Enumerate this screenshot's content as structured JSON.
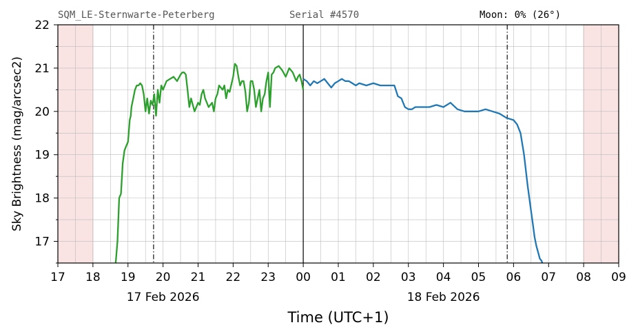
{
  "header": {
    "station": "SQM_LE-Sternwarte-Peterberg",
    "serial": "Serial #4570",
    "moon": "Moon: 0% (26°)"
  },
  "colors": {
    "evening": "#2ca02c",
    "morning": "#1f77b4",
    "daylight_shade": "#f9e3e3"
  },
  "chart_data": {
    "type": "line",
    "xlabel": "Time (UTC+1)",
    "ylabel": "Sky Brightness (mag/arcsec2)",
    "xlim": [
      17,
      33
    ],
    "ylim": [
      16.5,
      22
    ],
    "x_tick_positions": [
      17,
      18,
      19,
      20,
      21,
      22,
      23,
      24,
      25,
      26,
      27,
      28,
      29,
      30,
      31,
      32,
      33
    ],
    "x_tick_labels": [
      "17",
      "18",
      "19",
      "20",
      "21",
      "22",
      "23",
      "00",
      "01",
      "02",
      "03",
      "04",
      "05",
      "06",
      "07",
      "08",
      "09"
    ],
    "y_ticks": [
      17,
      18,
      19,
      20,
      21,
      22
    ],
    "date_labels": [
      {
        "text": "17 Feb 2026",
        "x": 20
      },
      {
        "text": "18 Feb 2026",
        "x": 28
      }
    ],
    "grid": true,
    "midnight_line": 24,
    "twilight_lines": [
      19.73,
      29.82
    ],
    "daylight_shading": [
      [
        17,
        18
      ],
      [
        32,
        33
      ]
    ],
    "series": [
      {
        "color": "#2ca02c",
        "x": [
          18.65,
          18.7,
          18.75,
          18.8,
          18.85,
          18.9,
          18.95,
          19.0,
          19.02,
          19.05,
          19.08,
          19.1,
          19.15,
          19.2,
          19.25,
          19.3,
          19.35,
          19.4,
          19.45,
          19.5,
          19.55,
          19.6,
          19.65,
          19.7,
          19.75,
          19.8,
          19.85,
          19.9,
          19.95,
          20.0,
          20.1,
          20.2,
          20.3,
          20.4,
          20.5,
          20.55,
          20.6,
          20.65,
          20.7,
          20.75,
          20.8,
          20.9,
          21.0,
          21.05,
          21.1,
          21.15,
          21.2,
          21.3,
          21.4,
          21.45,
          21.5,
          21.55,
          21.6,
          21.7,
          21.75,
          21.8,
          21.85,
          21.9,
          22.0,
          22.05,
          22.1,
          22.15,
          22.2,
          22.25,
          22.3,
          22.35,
          22.4,
          22.45,
          22.5,
          22.55,
          22.6,
          22.65,
          22.7,
          22.75,
          22.8,
          22.85,
          22.9,
          22.95,
          23.0,
          23.05,
          23.1,
          23.15,
          23.2,
          23.3,
          23.4,
          23.5,
          23.6,
          23.7,
          23.8,
          23.85,
          23.9,
          23.95,
          24.0
        ],
        "y": [
          16.5,
          17.0,
          18.0,
          18.1,
          18.8,
          19.1,
          19.2,
          19.3,
          19.5,
          19.8,
          19.9,
          20.1,
          20.3,
          20.5,
          20.6,
          20.6,
          20.65,
          20.6,
          20.4,
          20.0,
          20.3,
          19.95,
          20.25,
          20.15,
          20.4,
          19.9,
          20.5,
          20.2,
          20.6,
          20.5,
          20.7,
          20.75,
          20.8,
          20.7,
          20.85,
          20.9,
          20.9,
          20.85,
          20.5,
          20.1,
          20.3,
          20.0,
          20.2,
          20.15,
          20.4,
          20.5,
          20.3,
          20.1,
          20.2,
          20.0,
          20.3,
          20.4,
          20.6,
          20.5,
          20.6,
          20.3,
          20.5,
          20.45,
          20.8,
          21.1,
          21.05,
          20.8,
          20.6,
          20.7,
          20.7,
          20.45,
          20.0,
          20.2,
          20.7,
          20.7,
          20.5,
          20.1,
          20.3,
          20.5,
          20.0,
          20.3,
          20.4,
          20.7,
          20.9,
          20.1,
          20.85,
          20.9,
          21.0,
          21.05,
          20.95,
          20.8,
          21.0,
          20.9,
          20.7,
          20.8,
          20.85,
          20.7,
          20.5
        ]
      },
      {
        "color": "#1f77b4",
        "x": [
          24.0,
          24.1,
          24.2,
          24.3,
          24.4,
          24.5,
          24.6,
          24.7,
          24.8,
          24.9,
          25.0,
          25.1,
          25.2,
          25.3,
          25.4,
          25.5,
          25.6,
          25.8,
          26.0,
          26.2,
          26.4,
          26.6,
          26.7,
          26.8,
          26.9,
          27.0,
          27.1,
          27.2,
          27.4,
          27.6,
          27.8,
          28.0,
          28.2,
          28.4,
          28.6,
          28.8,
          29.0,
          29.2,
          29.4,
          29.6,
          29.8,
          30.0,
          30.1,
          30.2,
          30.3,
          30.4,
          30.5,
          30.55,
          30.6,
          30.65,
          30.7,
          30.75,
          30.8,
          30.82
        ],
        "y": [
          20.75,
          20.7,
          20.6,
          20.7,
          20.65,
          20.7,
          20.75,
          20.65,
          20.55,
          20.65,
          20.7,
          20.75,
          20.7,
          20.7,
          20.65,
          20.6,
          20.65,
          20.6,
          20.65,
          20.6,
          20.6,
          20.6,
          20.35,
          20.3,
          20.1,
          20.05,
          20.05,
          20.1,
          20.1,
          20.1,
          20.15,
          20.1,
          20.2,
          20.05,
          20.0,
          20.0,
          20.0,
          20.05,
          20.0,
          19.95,
          19.85,
          19.8,
          19.7,
          19.5,
          19.0,
          18.3,
          17.7,
          17.4,
          17.1,
          16.9,
          16.75,
          16.6,
          16.55,
          16.5
        ]
      }
    ]
  }
}
